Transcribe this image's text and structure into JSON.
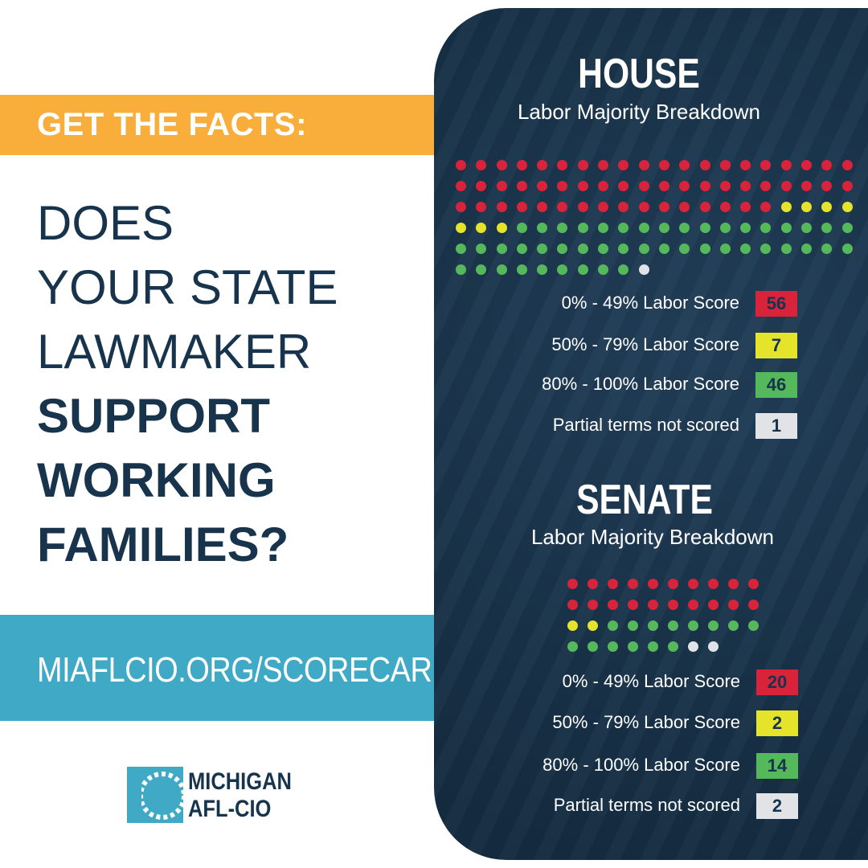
{
  "left": {
    "banner": "GET THE FACTS:",
    "headline_light": [
      "DOES",
      "YOUR STATE",
      "LAWMAKER"
    ],
    "headline_bold": [
      "SUPPORT",
      "WORKING",
      "FAMILIES?"
    ],
    "url": "MIAFLCIO.ORG/SCORECARD",
    "logo": {
      "line1": "MICHIGAN",
      "line2": "AFL-CIO"
    }
  },
  "colors": {
    "low": "#d8233b",
    "mid": "#e6e32b",
    "high": "#55b85a",
    "partial": "#e1e3e6"
  },
  "house": {
    "title": "HOUSE",
    "subtitle": "Labor Majority Breakdown",
    "legend": [
      {
        "key": "low",
        "label": "0% - 49% Labor Score",
        "value": 56
      },
      {
        "key": "mid",
        "label": "50% - 79% Labor Score",
        "value": 7
      },
      {
        "key": "high",
        "label": "80% - 100% Labor Score",
        "value": 46
      },
      {
        "key": "partial",
        "label": "Partial terms not scored",
        "value": 1
      }
    ]
  },
  "senate": {
    "title": "SENATE",
    "subtitle": "Labor Majority Breakdown",
    "legend": [
      {
        "key": "low",
        "label": "0% - 49% Labor Score",
        "value": 20
      },
      {
        "key": "mid",
        "label": "50% - 79% Labor Score",
        "value": 2
      },
      {
        "key": "high",
        "label": "80% - 100% Labor Score",
        "value": 14
      },
      {
        "key": "partial",
        "label": "Partial terms not scored",
        "value": 2
      }
    ]
  }
}
